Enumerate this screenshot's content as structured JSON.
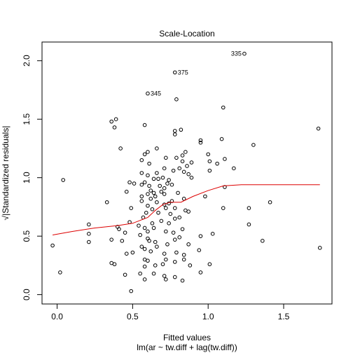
{
  "chart_data": {
    "type": "scatter",
    "title": "Scale-Location",
    "xlabel": "Fitted values",
    "subtitle": "lm(ar ~ tw.diff + lag(tw.diff))",
    "ylabel": "√|Standardized residuals|",
    "xlim": [
      -0.1,
      1.82
    ],
    "ylim": [
      -0.08,
      2.16
    ],
    "x_ticks": [
      0.0,
      0.5,
      1.0,
      1.5
    ],
    "x_tick_labels": [
      "0.0",
      "0.5",
      "1.0",
      "1.5"
    ],
    "y_ticks": [
      0.0,
      0.5,
      1.0,
      1.5,
      2.0
    ],
    "y_tick_labels": [
      "0.0",
      "0.5",
      "1.0",
      "1.5",
      "2.0"
    ],
    "grid": false,
    "point_color": "#000000",
    "smoother_color": "#dd0000",
    "points": [
      [
        1.24,
        2.06
      ],
      [
        0.78,
        1.9
      ],
      [
        0.6,
        1.72
      ],
      [
        0.79,
        1.67
      ],
      [
        1.1,
        1.6
      ],
      [
        0.36,
        1.48
      ],
      [
        0.39,
        1.5
      ],
      [
        0.38,
        1.43
      ],
      [
        0.58,
        1.45
      ],
      [
        1.73,
        1.42
      ],
      [
        0.78,
        1.4
      ],
      [
        0.82,
        1.41
      ],
      [
        0.78,
        1.37
      ],
      [
        1.09,
        1.33
      ],
      [
        0.95,
        1.32
      ],
      [
        0.95,
        1.3
      ],
      [
        1.3,
        1.28
      ],
      [
        0.42,
        1.25
      ],
      [
        0.66,
        1.25
      ],
      [
        0.6,
        1.22
      ],
      [
        0.58,
        1.2
      ],
      [
        0.85,
        1.22
      ],
      [
        0.83,
        1.19
      ],
      [
        1.11,
        1.16
      ],
      [
        1.0,
        1.2
      ],
      [
        0.56,
        1.15
      ],
      [
        0.72,
        1.17
      ],
      [
        0.61,
        1.12
      ],
      [
        0.79,
        1.17
      ],
      [
        0.83,
        1.14
      ],
      [
        0.89,
        1.13
      ],
      [
        0.86,
        1.1
      ],
      [
        1.01,
        1.14
      ],
      [
        0.81,
        1.08
      ],
      [
        1.06,
        1.12
      ],
      [
        1.17,
        1.08
      ],
      [
        0.84,
        1.05
      ],
      [
        0.71,
        1.08
      ],
      [
        0.66,
        1.04
      ],
      [
        0.77,
        1.06
      ],
      [
        0.56,
        1.04
      ],
      [
        0.6,
        1.02
      ],
      [
        0.87,
        1.03
      ],
      [
        0.89,
        1.0
      ],
      [
        0.04,
        0.98
      ],
      [
        0.7,
        1.0
      ],
      [
        0.67,
        0.99
      ],
      [
        0.64,
        0.99
      ],
      [
        0.74,
        0.98
      ],
      [
        1.01,
        1.06
      ],
      [
        0.58,
        0.96
      ],
      [
        0.48,
        0.96
      ],
      [
        0.73,
        0.95
      ],
      [
        0.51,
        0.95
      ],
      [
        0.56,
        0.94
      ],
      [
        0.61,
        0.93
      ],
      [
        0.68,
        0.93
      ],
      [
        0.76,
        0.94
      ],
      [
        0.46,
        0.88
      ],
      [
        1.11,
        0.92
      ],
      [
        0.62,
        0.89
      ],
      [
        0.64,
        0.87
      ],
      [
        0.69,
        0.88
      ],
      [
        0.71,
        0.91
      ],
      [
        0.71,
        0.86
      ],
      [
        0.56,
        0.84
      ],
      [
        0.6,
        0.86
      ],
      [
        0.8,
        0.87
      ],
      [
        0.65,
        0.84
      ],
      [
        0.62,
        0.82
      ],
      [
        0.84,
        0.82
      ],
      [
        0.98,
        0.84
      ],
      [
        0.33,
        0.79
      ],
      [
        0.56,
        0.8
      ],
      [
        0.66,
        0.79
      ],
      [
        0.71,
        0.77
      ],
      [
        0.6,
        0.76
      ],
      [
        0.76,
        0.8
      ],
      [
        0.74,
        0.78
      ],
      [
        1.41,
        0.79
      ],
      [
        0.49,
        0.74
      ],
      [
        1.1,
        0.74
      ],
      [
        0.63,
        0.73
      ],
      [
        0.72,
        0.74
      ],
      [
        0.78,
        0.74
      ],
      [
        0.85,
        0.72
      ],
      [
        0.87,
        0.71
      ],
      [
        1.27,
        0.74
      ],
      [
        0.59,
        0.7
      ],
      [
        0.67,
        0.7
      ],
      [
        0.75,
        0.69
      ],
      [
        0.81,
        0.66
      ],
      [
        0.57,
        0.66
      ],
      [
        0.78,
        0.65
      ],
      [
        0.69,
        0.63
      ],
      [
        0.48,
        0.62
      ],
      [
        0.63,
        0.61
      ],
      [
        0.74,
        0.61
      ],
      [
        0.21,
        0.6
      ],
      [
        0.4,
        0.58
      ],
      [
        0.41,
        0.56
      ],
      [
        0.54,
        0.59
      ],
      [
        0.58,
        0.57
      ],
      [
        0.64,
        0.57
      ],
      [
        0.83,
        0.56
      ],
      [
        0.45,
        0.53
      ],
      [
        1.27,
        0.6
      ],
      [
        0.21,
        0.52
      ],
      [
        0.6,
        0.54
      ],
      [
        0.72,
        0.54
      ],
      [
        0.77,
        0.53
      ],
      [
        0.36,
        0.47
      ],
      [
        0.43,
        0.46
      ],
      [
        0.55,
        0.51
      ],
      [
        0.6,
        0.48
      ],
      [
        0.95,
        0.5
      ],
      [
        1.03,
        0.52
      ],
      [
        0.81,
        0.49
      ],
      [
        0.21,
        0.45
      ],
      [
        0.61,
        0.46
      ],
      [
        0.65,
        0.45
      ],
      [
        1.36,
        0.46
      ],
      [
        0.78,
        0.47
      ],
      [
        -0.03,
        0.42
      ],
      [
        0.56,
        0.41
      ],
      [
        0.58,
        0.39
      ],
      [
        0.73,
        0.43
      ],
      [
        0.66,
        0.41
      ],
      [
        0.87,
        0.43
      ],
      [
        0.46,
        0.35
      ],
      [
        0.5,
        0.36
      ],
      [
        0.62,
        0.37
      ],
      [
        0.71,
        0.35
      ],
      [
        0.79,
        0.36
      ],
      [
        0.84,
        0.34
      ],
      [
        0.94,
        0.38
      ],
      [
        1.74,
        0.4
      ],
      [
        0.36,
        0.27
      ],
      [
        0.38,
        0.26
      ],
      [
        0.58,
        0.3
      ],
      [
        0.6,
        0.29
      ],
      [
        0.72,
        0.3
      ],
      [
        0.78,
        0.28
      ],
      [
        0.84,
        0.3
      ],
      [
        0.58,
        0.24
      ],
      [
        0.65,
        0.25
      ],
      [
        0.7,
        0.26
      ],
      [
        0.88,
        0.25
      ],
      [
        1.01,
        0.26
      ],
      [
        0.02,
        0.19
      ],
      [
        0.55,
        0.18
      ],
      [
        0.64,
        0.18
      ],
      [
        0.45,
        0.17
      ],
      [
        0.71,
        0.16
      ],
      [
        0.78,
        0.15
      ],
      [
        0.83,
        0.12
      ],
      [
        0.95,
        0.19
      ],
      [
        0.72,
        0.13
      ],
      [
        0.58,
        0.13
      ],
      [
        0.49,
        0.03
      ]
    ],
    "labeled_points": [
      {
        "x": 1.24,
        "y": 2.06,
        "label": "335",
        "side": "left"
      },
      {
        "x": 0.78,
        "y": 1.9,
        "label": "375",
        "side": "right"
      },
      {
        "x": 0.6,
        "y": 1.72,
        "label": "345",
        "side": "right"
      }
    ],
    "smoother": [
      [
        -0.03,
        0.51
      ],
      [
        0.1,
        0.54
      ],
      [
        0.25,
        0.57
      ],
      [
        0.4,
        0.59
      ],
      [
        0.5,
        0.61
      ],
      [
        0.6,
        0.66
      ],
      [
        0.65,
        0.72
      ],
      [
        0.7,
        0.77
      ],
      [
        0.75,
        0.79
      ],
      [
        0.82,
        0.79
      ],
      [
        0.9,
        0.84
      ],
      [
        1.0,
        0.89
      ],
      [
        1.1,
        0.93
      ],
      [
        1.22,
        0.94
      ],
      [
        1.74,
        0.94
      ]
    ]
  }
}
